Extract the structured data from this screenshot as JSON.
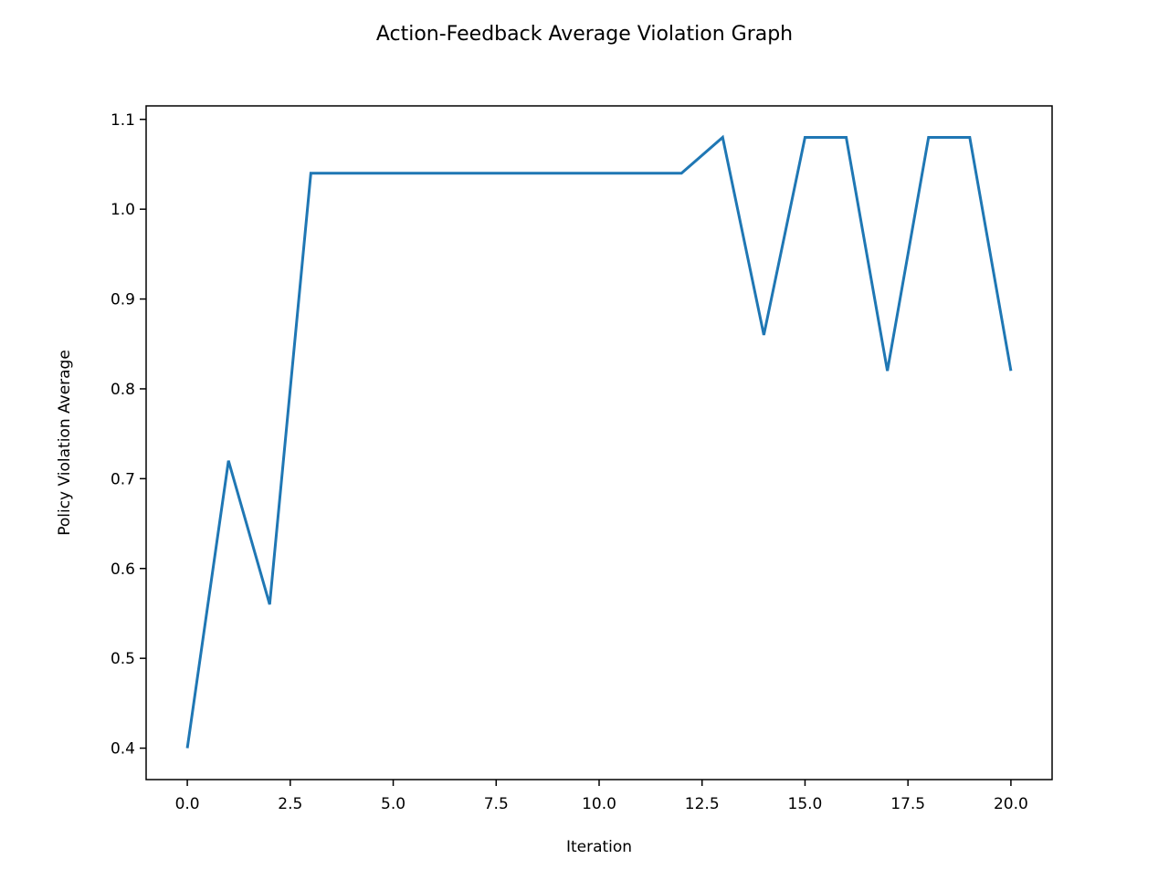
{
  "chart_data": {
    "type": "line",
    "title": "Action-Feedback Average Violation Graph",
    "xlabel": "Iteration",
    "ylabel": "Policy Violation Average",
    "xlim": [
      -1.0,
      21.0
    ],
    "ylim": [
      0.365,
      1.115
    ],
    "xticks": [
      0.0,
      2.5,
      5.0,
      7.5,
      10.0,
      12.5,
      15.0,
      17.5,
      20.0
    ],
    "xtick_labels": [
      "0.0",
      "2.5",
      "5.0",
      "7.5",
      "10.0",
      "12.5",
      "15.0",
      "17.5",
      "20.0"
    ],
    "yticks": [
      0.4,
      0.5,
      0.6,
      0.7,
      0.8,
      0.9,
      1.0,
      1.1
    ],
    "ytick_labels": [
      "0.4",
      "0.5",
      "0.6",
      "0.7",
      "0.8",
      "0.9",
      "1.0",
      "1.1"
    ],
    "grid": false,
    "legend": "none",
    "series": [
      {
        "color": "#1f77b4",
        "x": [
          0,
          1,
          2,
          3,
          4,
          5,
          6,
          7,
          8,
          9,
          10,
          11,
          12,
          13,
          14,
          15,
          16,
          17,
          18,
          19,
          20
        ],
        "values": [
          0.4,
          0.72,
          0.56,
          1.04,
          1.04,
          1.04,
          1.04,
          1.04,
          1.04,
          1.04,
          1.04,
          1.04,
          1.04,
          1.08,
          0.86,
          1.08,
          1.08,
          0.82,
          1.08,
          1.08,
          0.82
        ]
      }
    ]
  }
}
